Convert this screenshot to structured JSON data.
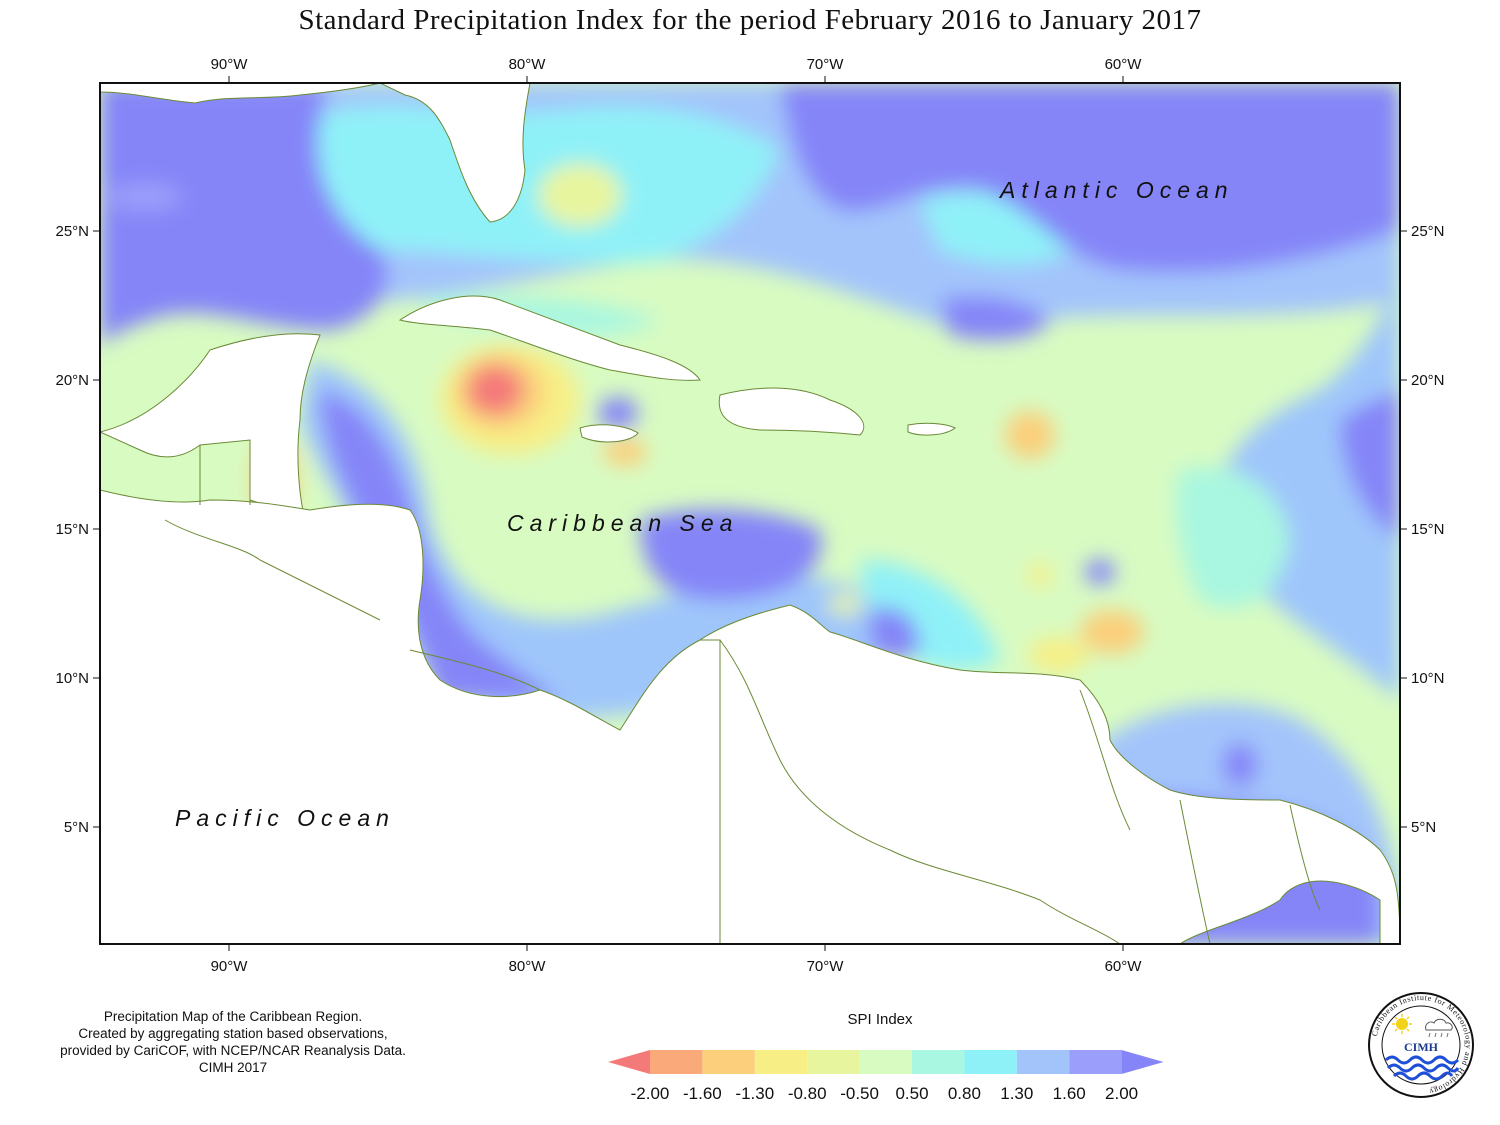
{
  "title": "Standard Precipitation Index for the period February 2016 to January 2017",
  "axes": {
    "longitudes": [
      "90°W",
      "80°W",
      "70°W",
      "60°W"
    ],
    "latitudes": [
      "25°N",
      "20°N",
      "15°N",
      "10°N",
      "5°N"
    ]
  },
  "ocean_labels": {
    "atlantic": "Atlantic Ocean",
    "caribbean": "Caribbean Sea",
    "pacific": "Pacific Ocean"
  },
  "credit_lines": [
    "Precipitation Map of the Caribbean Region.",
    "Created by aggregating station based observations,",
    "provided by CariCOF, with NCEP/NCAR Reanalysis Data.",
    "CIMH 2017"
  ],
  "legend": {
    "title": "SPI Index",
    "breaks": [
      "-2.00",
      "-1.60",
      "-1.30",
      "-0.80",
      "-0.50",
      "0.50",
      "0.80",
      "1.30",
      "1.60",
      "2.00"
    ],
    "colors": [
      "#f47a7a",
      "#f9a97a",
      "#fbcf7c",
      "#f7ef86",
      "#e8f59f",
      "#d8fbc2",
      "#a9f7e0",
      "#8ff1f8",
      "#a3c4fb",
      "#9b9ffb",
      "#8585f8"
    ]
  },
  "logo": {
    "acronym": "CIMH",
    "ring_text": "Caribbean Institute for Meteorology and Hydrology",
    "icons": [
      "sun-icon",
      "rain-cloud-icon",
      "waves-icon"
    ]
  }
}
